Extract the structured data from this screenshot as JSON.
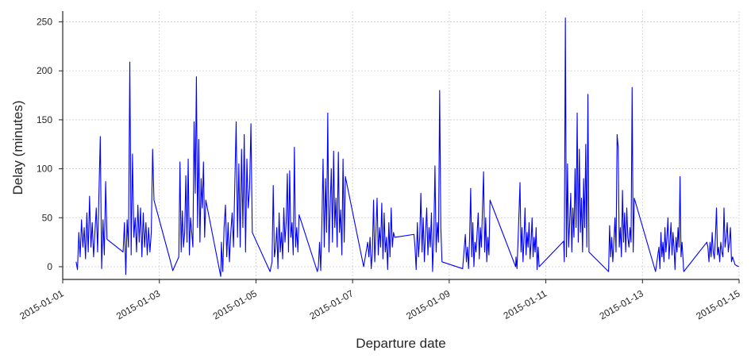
{
  "chart_data": {
    "type": "line",
    "x_label": "Departure date",
    "y_label": "Delay (minutes)",
    "color": "#0000ff",
    "grid": true,
    "xlim": [
      "2015-01-01",
      "2015-01-15"
    ],
    "xticks": [
      "2015-01-01",
      "2015-01-03",
      "2015-01-05",
      "2015-01-07",
      "2015-01-09",
      "2015-01-11",
      "2015-01-13",
      "2015-01-15"
    ],
    "ylim": [
      -13,
      261
    ],
    "yticks": [
      0,
      50,
      100,
      150,
      200,
      250
    ],
    "x": [
      "2015-01-01 06:40",
      "2015-01-01 07:20",
      "2015-01-01 08:00",
      "2015-01-01 08:40",
      "2015-01-01 09:20",
      "2015-01-01 10:00",
      "2015-01-01 10:40",
      "2015-01-01 11:20",
      "2015-01-01 12:00",
      "2015-01-01 12:40",
      "2015-01-01 13:20",
      "2015-01-01 14:00",
      "2015-01-01 14:40",
      "2015-01-01 15:20",
      "2015-01-01 16:00",
      "2015-01-01 16:40",
      "2015-01-01 17:20",
      "2015-01-01 18:00",
      "2015-01-01 18:40",
      "2015-01-01 19:20",
      "2015-01-01 20:00",
      "2015-01-01 20:40",
      "2015-01-01 21:20",
      "2015-01-01 22:00",
      "2015-01-02 06:00",
      "2015-01-02 06:40",
      "2015-01-02 07:20",
      "2015-01-02 08:00",
      "2015-01-02 08:40",
      "2015-01-02 09:20",
      "2015-01-02 10:00",
      "2015-01-02 10:40",
      "2015-01-02 11:20",
      "2015-01-02 12:00",
      "2015-01-02 12:40",
      "2015-01-02 13:20",
      "2015-01-02 14:00",
      "2015-01-02 14:40",
      "2015-01-02 15:20",
      "2015-01-02 16:00",
      "2015-01-02 16:40",
      "2015-01-02 17:20",
      "2015-01-02 18:00",
      "2015-01-02 18:40",
      "2015-01-02 19:20",
      "2015-01-02 20:00",
      "2015-01-02 20:40",
      "2015-01-02 21:20",
      "2015-01-03 05:20",
      "2015-01-03 06:40",
      "2015-01-03 09:40",
      "2015-01-03 10:15",
      "2015-01-03 10:50",
      "2015-01-03 11:25",
      "2015-01-03 12:00",
      "2015-01-03 12:35",
      "2015-01-03 13:10",
      "2015-01-03 13:45",
      "2015-01-03 14:20",
      "2015-01-03 14:55",
      "2015-01-03 15:30",
      "2015-01-03 16:05",
      "2015-01-03 16:40",
      "2015-01-03 17:15",
      "2015-01-03 17:50",
      "2015-01-03 18:25",
      "2015-01-03 19:00",
      "2015-01-03 19:35",
      "2015-01-03 20:10",
      "2015-01-03 20:45",
      "2015-01-03 21:20",
      "2015-01-03 21:55",
      "2015-01-03 22:30",
      "2015-01-03 23:05",
      "2015-01-04 06:30",
      "2015-01-04 06:50",
      "2015-01-04 07:30",
      "2015-01-04 08:10",
      "2015-01-04 08:50",
      "2015-01-04 09:30",
      "2015-01-04 10:10",
      "2015-01-04 10:50",
      "2015-01-04 11:30",
      "2015-01-04 12:10",
      "2015-01-04 12:50",
      "2015-01-04 13:30",
      "2015-01-04 14:10",
      "2015-01-04 14:50",
      "2015-01-04 15:30",
      "2015-01-04 16:10",
      "2015-01-04 16:50",
      "2015-01-04 17:30",
      "2015-01-04 18:10",
      "2015-01-04 18:50",
      "2015-01-04 19:30",
      "2015-01-04 20:10",
      "2015-01-04 20:50",
      "2015-01-04 21:30",
      "2015-01-04 22:10",
      "2015-01-05 07:00",
      "2015-01-05 08:00",
      "2015-01-05 08:35",
      "2015-01-05 09:10",
      "2015-01-05 09:45",
      "2015-01-05 10:20",
      "2015-01-05 10:55",
      "2015-01-05 11:30",
      "2015-01-05 12:05",
      "2015-01-05 12:40",
      "2015-01-05 13:15",
      "2015-01-05 13:50",
      "2015-01-05 14:25",
      "2015-01-05 15:00",
      "2015-01-05 15:35",
      "2015-01-05 16:10",
      "2015-01-05 16:45",
      "2015-01-05 17:20",
      "2015-01-05 17:55",
      "2015-01-05 18:30",
      "2015-01-05 19:05",
      "2015-01-05 19:40",
      "2015-01-05 20:15",
      "2015-01-05 20:50",
      "2015-01-05 21:25",
      "2015-01-06 06:30",
      "2015-01-06 07:00",
      "2015-01-06 07:35",
      "2015-01-06 08:10",
      "2015-01-06 08:45",
      "2015-01-06 09:20",
      "2015-01-06 09:55",
      "2015-01-06 10:30",
      "2015-01-06 11:05",
      "2015-01-06 11:40",
      "2015-01-06 12:15",
      "2015-01-06 12:50",
      "2015-01-06 13:25",
      "2015-01-06 14:00",
      "2015-01-06 14:35",
      "2015-01-06 15:10",
      "2015-01-06 15:45",
      "2015-01-06 16:20",
      "2015-01-06 16:55",
      "2015-01-06 17:30",
      "2015-01-06 18:05",
      "2015-01-06 18:40",
      "2015-01-06 19:15",
      "2015-01-06 19:50",
      "2015-01-06 20:25",
      "2015-01-07 05:30",
      "2015-01-07 07:30",
      "2015-01-07 08:05",
      "2015-01-07 08:40",
      "2015-01-07 09:15",
      "2015-01-07 09:50",
      "2015-01-07 10:25",
      "2015-01-07 11:00",
      "2015-01-07 11:35",
      "2015-01-07 12:10",
      "2015-01-07 12:45",
      "2015-01-07 13:20",
      "2015-01-07 13:55",
      "2015-01-07 14:30",
      "2015-01-07 15:05",
      "2015-01-07 15:40",
      "2015-01-07 16:15",
      "2015-01-07 16:50",
      "2015-01-07 17:25",
      "2015-01-07 18:00",
      "2015-01-07 18:35",
      "2015-01-07 19:10",
      "2015-01-07 19:45",
      "2015-01-07 20:20",
      "2015-01-07 20:55",
      "2015-01-08 06:30",
      "2015-01-08 07:00",
      "2015-01-08 07:35",
      "2015-01-08 08:10",
      "2015-01-08 08:45",
      "2015-01-08 09:20",
      "2015-01-08 09:55",
      "2015-01-08 10:30",
      "2015-01-08 11:05",
      "2015-01-08 11:40",
      "2015-01-08 12:15",
      "2015-01-08 12:50",
      "2015-01-08 13:25",
      "2015-01-08 14:00",
      "2015-01-08 14:35",
      "2015-01-08 15:10",
      "2015-01-08 15:45",
      "2015-01-08 16:20",
      "2015-01-08 16:55",
      "2015-01-08 17:30",
      "2015-01-08 18:05",
      "2015-01-08 18:40",
      "2015-01-08 19:15",
      "2015-01-08 19:50",
      "2015-01-08 20:25",
      "2015-01-09 06:40",
      "2015-01-09 08:00",
      "2015-01-09 08:32",
      "2015-01-09 09:04",
      "2015-01-09 09:36",
      "2015-01-09 10:08",
      "2015-01-09 10:40",
      "2015-01-09 11:12",
      "2015-01-09 11:44",
      "2015-01-09 12:16",
      "2015-01-09 12:48",
      "2015-01-09 13:20",
      "2015-01-09 13:52",
      "2015-01-09 14:24",
      "2015-01-09 14:56",
      "2015-01-09 15:28",
      "2015-01-09 16:00",
      "2015-01-09 16:32",
      "2015-01-09 17:04",
      "2015-01-09 17:36",
      "2015-01-09 18:08",
      "2015-01-09 18:40",
      "2015-01-09 19:12",
      "2015-01-09 19:44",
      "2015-01-09 20:16",
      "2015-01-10 09:00",
      "2015-01-10 09:10",
      "2015-01-10 09:40",
      "2015-01-10 10:10",
      "2015-01-10 10:40",
      "2015-01-10 11:10",
      "2015-01-10 11:40",
      "2015-01-10 12:10",
      "2015-01-10 12:40",
      "2015-01-10 13:10",
      "2015-01-10 13:40",
      "2015-01-10 14:10",
      "2015-01-10 14:40",
      "2015-01-10 15:10",
      "2015-01-10 15:40",
      "2015-01-10 16:10",
      "2015-01-10 16:40",
      "2015-01-10 17:10",
      "2015-01-10 17:40",
      "2015-01-10 18:10",
      "2015-01-10 18:40",
      "2015-01-10 19:10",
      "2015-01-10 19:40",
      "2015-01-10 20:10",
      "2015-01-10 20:40",
      "2015-01-11 08:50",
      "2015-01-11 09:10",
      "2015-01-11 09:42",
      "2015-01-11 10:14",
      "2015-01-11 10:46",
      "2015-01-11 11:18",
      "2015-01-11 11:50",
      "2015-01-11 12:22",
      "2015-01-11 12:54",
      "2015-01-11 13:26",
      "2015-01-11 13:58",
      "2015-01-11 14:30",
      "2015-01-11 15:02",
      "2015-01-11 15:34",
      "2015-01-11 16:06",
      "2015-01-11 16:38",
      "2015-01-11 17:10",
      "2015-01-11 17:42",
      "2015-01-11 18:14",
      "2015-01-11 18:46",
      "2015-01-11 19:18",
      "2015-01-11 19:50",
      "2015-01-11 20:22",
      "2015-01-11 20:54",
      "2015-01-11 21:26",
      "2015-01-12 07:10",
      "2015-01-12 07:40",
      "2015-01-12 08:12",
      "2015-01-12 08:44",
      "2015-01-12 09:16",
      "2015-01-12 09:48",
      "2015-01-12 10:20",
      "2015-01-12 10:52",
      "2015-01-12 11:24",
      "2015-01-12 11:56",
      "2015-01-12 12:28",
      "2015-01-12 13:00",
      "2015-01-12 13:32",
      "2015-01-12 14:04",
      "2015-01-12 14:36",
      "2015-01-12 15:08",
      "2015-01-12 15:40",
      "2015-01-12 16:12",
      "2015-01-12 16:44",
      "2015-01-12 17:16",
      "2015-01-12 17:48",
      "2015-01-12 18:20",
      "2015-01-12 18:52",
      "2015-01-12 19:24",
      "2015-01-12 19:56",
      "2015-01-13 06:30",
      "2015-01-13 08:10",
      "2015-01-13 08:40",
      "2015-01-13 09:10",
      "2015-01-13 09:40",
      "2015-01-13 10:10",
      "2015-01-13 10:40",
      "2015-01-13 11:10",
      "2015-01-13 11:40",
      "2015-01-13 12:10",
      "2015-01-13 12:40",
      "2015-01-13 13:10",
      "2015-01-13 13:40",
      "2015-01-13 14:10",
      "2015-01-13 14:40",
      "2015-01-13 15:10",
      "2015-01-13 15:40",
      "2015-01-13 16:10",
      "2015-01-13 16:40",
      "2015-01-13 17:10",
      "2015-01-13 17:40",
      "2015-01-13 18:10",
      "2015-01-13 18:40",
      "2015-01-13 19:10",
      "2015-01-13 19:40",
      "2015-01-13 20:30",
      "2015-01-14 08:00",
      "2015-01-14 08:30",
      "2015-01-14 09:02",
      "2015-01-14 09:34",
      "2015-01-14 10:06",
      "2015-01-14 10:38",
      "2015-01-14 11:10",
      "2015-01-14 11:42",
      "2015-01-14 12:14",
      "2015-01-14 12:46",
      "2015-01-14 13:18",
      "2015-01-14 13:50",
      "2015-01-14 14:22",
      "2015-01-14 14:54",
      "2015-01-14 15:26",
      "2015-01-14 15:58",
      "2015-01-14 16:30",
      "2015-01-14 17:02",
      "2015-01-14 17:34",
      "2015-01-14 18:06",
      "2015-01-14 18:38",
      "2015-01-14 19:10",
      "2015-01-14 19:42",
      "2015-01-14 20:14",
      "2015-01-14 20:46",
      "2015-01-14 22:00",
      "2015-01-14 23:50"
    ],
    "values": [
      5,
      -3,
      35,
      10,
      48,
      20,
      40,
      8,
      55,
      15,
      72,
      20,
      45,
      10,
      35,
      60,
      15,
      75,
      133,
      -2,
      48,
      12,
      87,
      28,
      15,
      45,
      -8,
      48,
      20,
      209,
      12,
      115,
      30,
      50,
      15,
      63,
      25,
      60,
      10,
      55,
      20,
      45,
      12,
      40,
      15,
      35,
      120,
      68,
      7,
      -4,
      10,
      107,
      15,
      57,
      20,
      35,
      93,
      25,
      110,
      12,
      50,
      35,
      20,
      148,
      75,
      194,
      40,
      130,
      25,
      90,
      60,
      107,
      30,
      68,
      -10,
      25,
      -5,
      40,
      63,
      10,
      45,
      5,
      35,
      55,
      20,
      85,
      148,
      30,
      105,
      20,
      120,
      40,
      135,
      15,
      110,
      60,
      80,
      146,
      35,
      -5,
      5,
      83,
      10,
      20,
      40,
      -2,
      55,
      15,
      35,
      8,
      60,
      25,
      45,
      95,
      15,
      98,
      30,
      45,
      12,
      122,
      20,
      40,
      15,
      53,
      -5,
      0,
      25,
      -4,
      45,
      110,
      20,
      90,
      35,
      157,
      15,
      60,
      100,
      25,
      118,
      40,
      70,
      20,
      117,
      35,
      58,
      12,
      110,
      25,
      92,
      0,
      25,
      10,
      30,
      -2,
      15,
      68,
      5,
      35,
      70,
      12,
      40,
      20,
      65,
      8,
      55,
      15,
      30,
      -3,
      45,
      10,
      60,
      20,
      35,
      30,
      33,
      20,
      -3,
      45,
      10,
      30,
      75,
      15,
      50,
      5,
      35,
      60,
      12,
      40,
      20,
      55,
      -5,
      30,
      103,
      15,
      45,
      25,
      180,
      40,
      5,
      -2,
      33,
      5,
      20,
      -2,
      30,
      80,
      10,
      45,
      0,
      25,
      15,
      35,
      55,
      8,
      40,
      20,
      60,
      97,
      15,
      50,
      5,
      30,
      12,
      68,
      0,
      10,
      -2,
      25,
      55,
      86,
      15,
      40,
      5,
      30,
      60,
      12,
      35,
      20,
      45,
      8,
      25,
      50,
      10,
      30,
      15,
      40,
      -3,
      20,
      0,
      26,
      5,
      254,
      10,
      105,
      20,
      45,
      75,
      15,
      60,
      30,
      100,
      40,
      157,
      25,
      120,
      35,
      70,
      15,
      90,
      40,
      125,
      20,
      176,
      15,
      -5,
      42,
      10,
      30,
      5,
      25,
      50,
      15,
      135,
      122,
      20,
      40,
      10,
      78,
      25,
      55,
      15,
      60,
      30,
      20,
      40,
      25,
      183,
      15,
      70,
      -5,
      20,
      -2,
      35,
      10,
      25,
      5,
      40,
      15,
      30,
      50,
      8,
      25,
      45,
      12,
      35,
      20,
      -3,
      30,
      15,
      40,
      20,
      92,
      10,
      25,
      -5,
      25,
      20,
      5,
      25,
      10,
      35,
      15,
      8,
      30,
      60,
      12,
      20,
      5,
      25,
      15,
      10,
      60,
      20,
      30,
      45,
      15,
      25,
      40,
      5,
      10,
      2,
      0
    ]
  }
}
